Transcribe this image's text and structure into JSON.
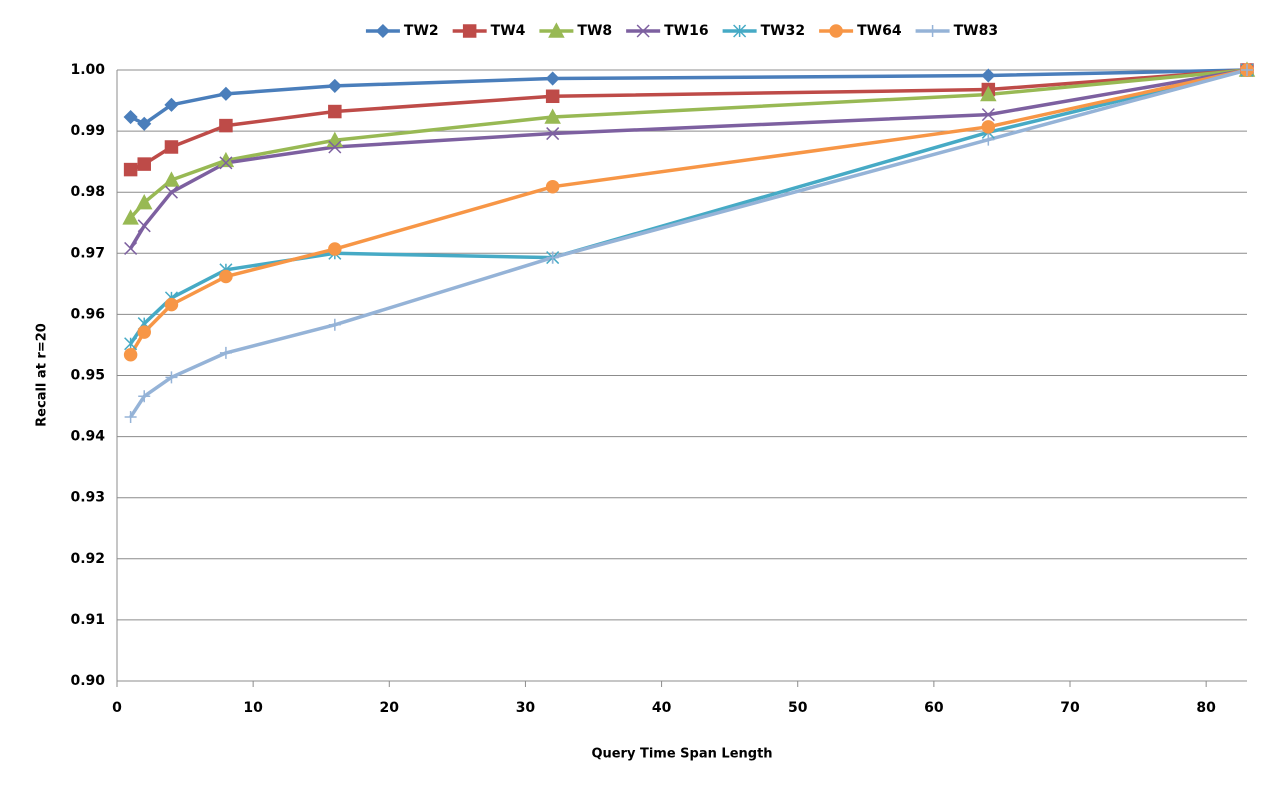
{
  "chart_data": {
    "type": "line",
    "x_label": "Query Time Span Length",
    "y_label": "Recall at r=20",
    "x": [
      1,
      2,
      4,
      8,
      16,
      32,
      64,
      83
    ],
    "xlim": [
      0,
      83
    ],
    "xticks": [
      0,
      10,
      20,
      30,
      40,
      50,
      60,
      70,
      80
    ],
    "ylim": [
      0.9,
      1.0
    ],
    "yticks": [
      {
        "value": 0.9,
        "label": "0.90"
      },
      0.91,
      0.92,
      0.93,
      0.94,
      0.95,
      0.96,
      0.97,
      0.98,
      0.99,
      {
        "value": 1.0,
        "label": "1.00"
      }
    ],
    "grid": true,
    "legend": "top",
    "series": [
      {
        "name": "TW2",
        "color": "#4a7ebb",
        "marker": "diamond",
        "values": [
          0.9923,
          0.9912,
          0.9943,
          0.9961,
          0.9974,
          0.9986,
          0.9991,
          1.0
        ]
      },
      {
        "name": "TW4",
        "color": "#be4b48",
        "marker": "square",
        "values": [
          0.9837,
          0.9846,
          0.9874,
          0.9909,
          0.9932,
          0.9957,
          0.9968,
          1.0
        ]
      },
      {
        "name": "TW8",
        "color": "#98b954",
        "marker": "triangle",
        "values": [
          0.9758,
          0.9783,
          0.982,
          0.9852,
          0.9885,
          0.9923,
          0.996,
          1.0
        ]
      },
      {
        "name": "TW16",
        "color": "#7d60a0",
        "marker": "x",
        "values": [
          0.9708,
          0.9745,
          0.98,
          0.9848,
          0.9874,
          0.9896,
          0.9927,
          1.0
        ]
      },
      {
        "name": "TW32",
        "color": "#46aac5",
        "marker": "star",
        "values": [
          0.9552,
          0.9585,
          0.9627,
          0.9673,
          0.97,
          0.9693,
          0.9898,
          1.0
        ]
      },
      {
        "name": "TW64",
        "color": "#f79646",
        "marker": "circle",
        "values": [
          0.9534,
          0.9571,
          0.9616,
          0.9662,
          0.9707,
          0.9809,
          0.9907,
          1.0
        ]
      },
      {
        "name": "TW83",
        "color": "#95b3d7",
        "marker": "plus",
        "values": [
          0.9432,
          0.9466,
          0.9497,
          0.9537,
          0.9583,
          0.9693,
          0.9886,
          1.0
        ]
      }
    ]
  }
}
